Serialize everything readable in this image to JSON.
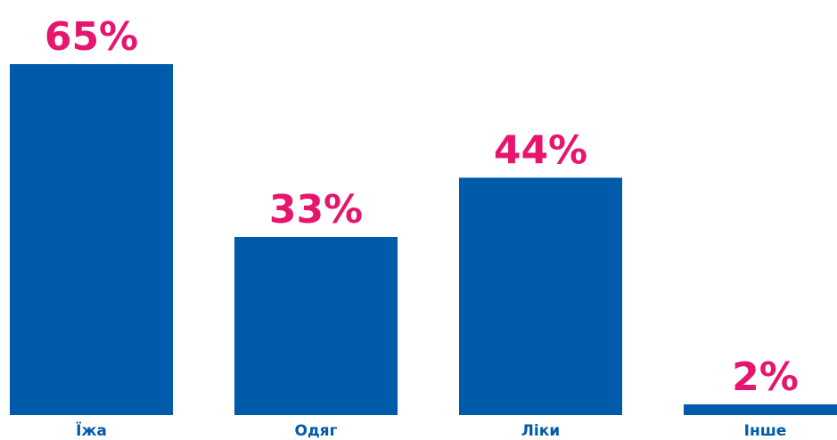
{
  "chart_data": {
    "type": "bar",
    "categories": [
      "Їжа",
      "Одяг",
      "Ліки",
      "Інше"
    ],
    "values": [
      65,
      33,
      44,
      2
    ],
    "value_labels": [
      "65%",
      "33%",
      "44%",
      "2%"
    ],
    "title": "",
    "xlabel": "",
    "ylabel": "",
    "ylim": [
      0,
      65
    ],
    "grid": false,
    "legend": "none"
  },
  "colors": {
    "bar": "#005BAA",
    "value_label": "#E6156E",
    "category_label": "#005BAA",
    "background": "#FFFFFF"
  }
}
